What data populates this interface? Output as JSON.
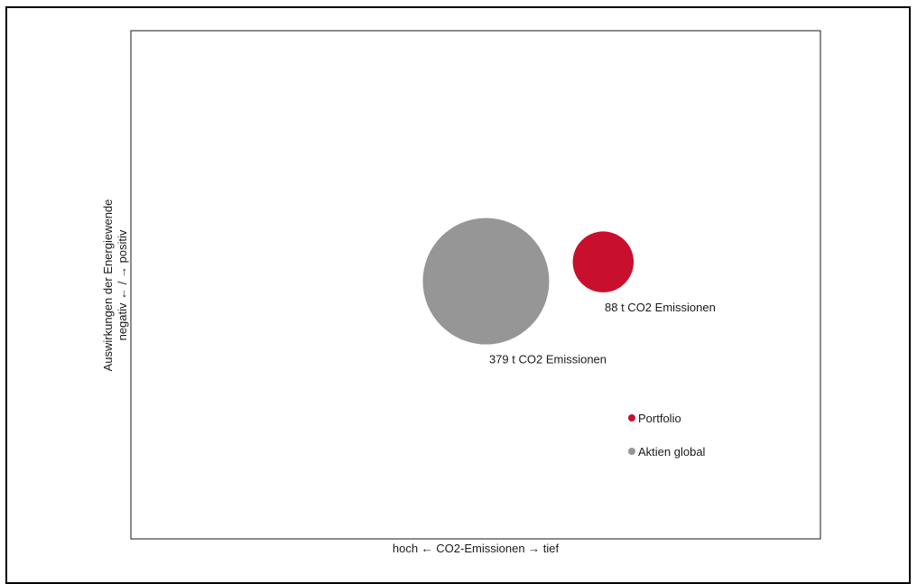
{
  "chart_data": {
    "type": "scatter",
    "title": "",
    "xlabel": "hoch ← CO2-Emissionen → tief",
    "ylabel": [
      "Auswirkungen der Energiewende",
      "negativ ← / → positiv"
    ],
    "xlim": [
      0,
      100
    ],
    "ylim": [
      0,
      100
    ],
    "grid": false,
    "legend_placement": "bottom-right inside",
    "series": [
      {
        "name": "Portfolio",
        "color": "#c8102e",
        "x": 68.5,
        "y": 54.5,
        "emissions_t": 88,
        "label": "88 t CO2 Emissionen"
      },
      {
        "name": "Aktien global",
        "color": "#969696",
        "x": 51.5,
        "y": 50.7,
        "emissions_t": 379,
        "label": "379 t CO2 Emissionen"
      }
    ],
    "legend": [
      {
        "name": "Portfolio",
        "color": "#c8102e"
      },
      {
        "name": "Aktien global",
        "color": "#969696"
      }
    ]
  }
}
